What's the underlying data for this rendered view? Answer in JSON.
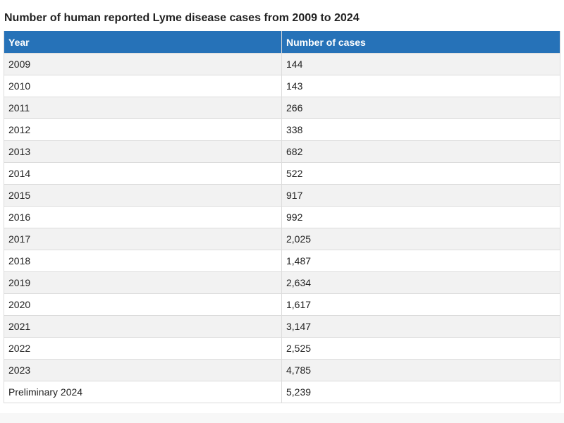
{
  "chart_data": {
    "type": "table",
    "title": "Number of human reported Lyme disease cases from 2009 to 2024",
    "columns": [
      "Year",
      "Number of cases"
    ],
    "rows": [
      [
        "2009",
        "144"
      ],
      [
        "2010",
        "143"
      ],
      [
        "2011",
        "266"
      ],
      [
        "2012",
        "338"
      ],
      [
        "2013",
        "682"
      ],
      [
        "2014",
        "522"
      ],
      [
        "2015",
        "917"
      ],
      [
        "2016",
        "992"
      ],
      [
        "2017",
        "2,025"
      ],
      [
        "2018",
        "1,487"
      ],
      [
        "2019",
        "2,634"
      ],
      [
        "2020",
        "1,617"
      ],
      [
        "2021",
        "3,147"
      ],
      [
        "2022",
        "2,525"
      ],
      [
        "2023",
        "4,785"
      ],
      [
        "Preliminary 2024",
        "5,239"
      ]
    ]
  },
  "colors": {
    "header_bg": "#2672b8",
    "header_text": "#ffffff",
    "row_odd": "#f2f2f2",
    "row_even": "#ffffff",
    "border": "#dcdcdc"
  }
}
